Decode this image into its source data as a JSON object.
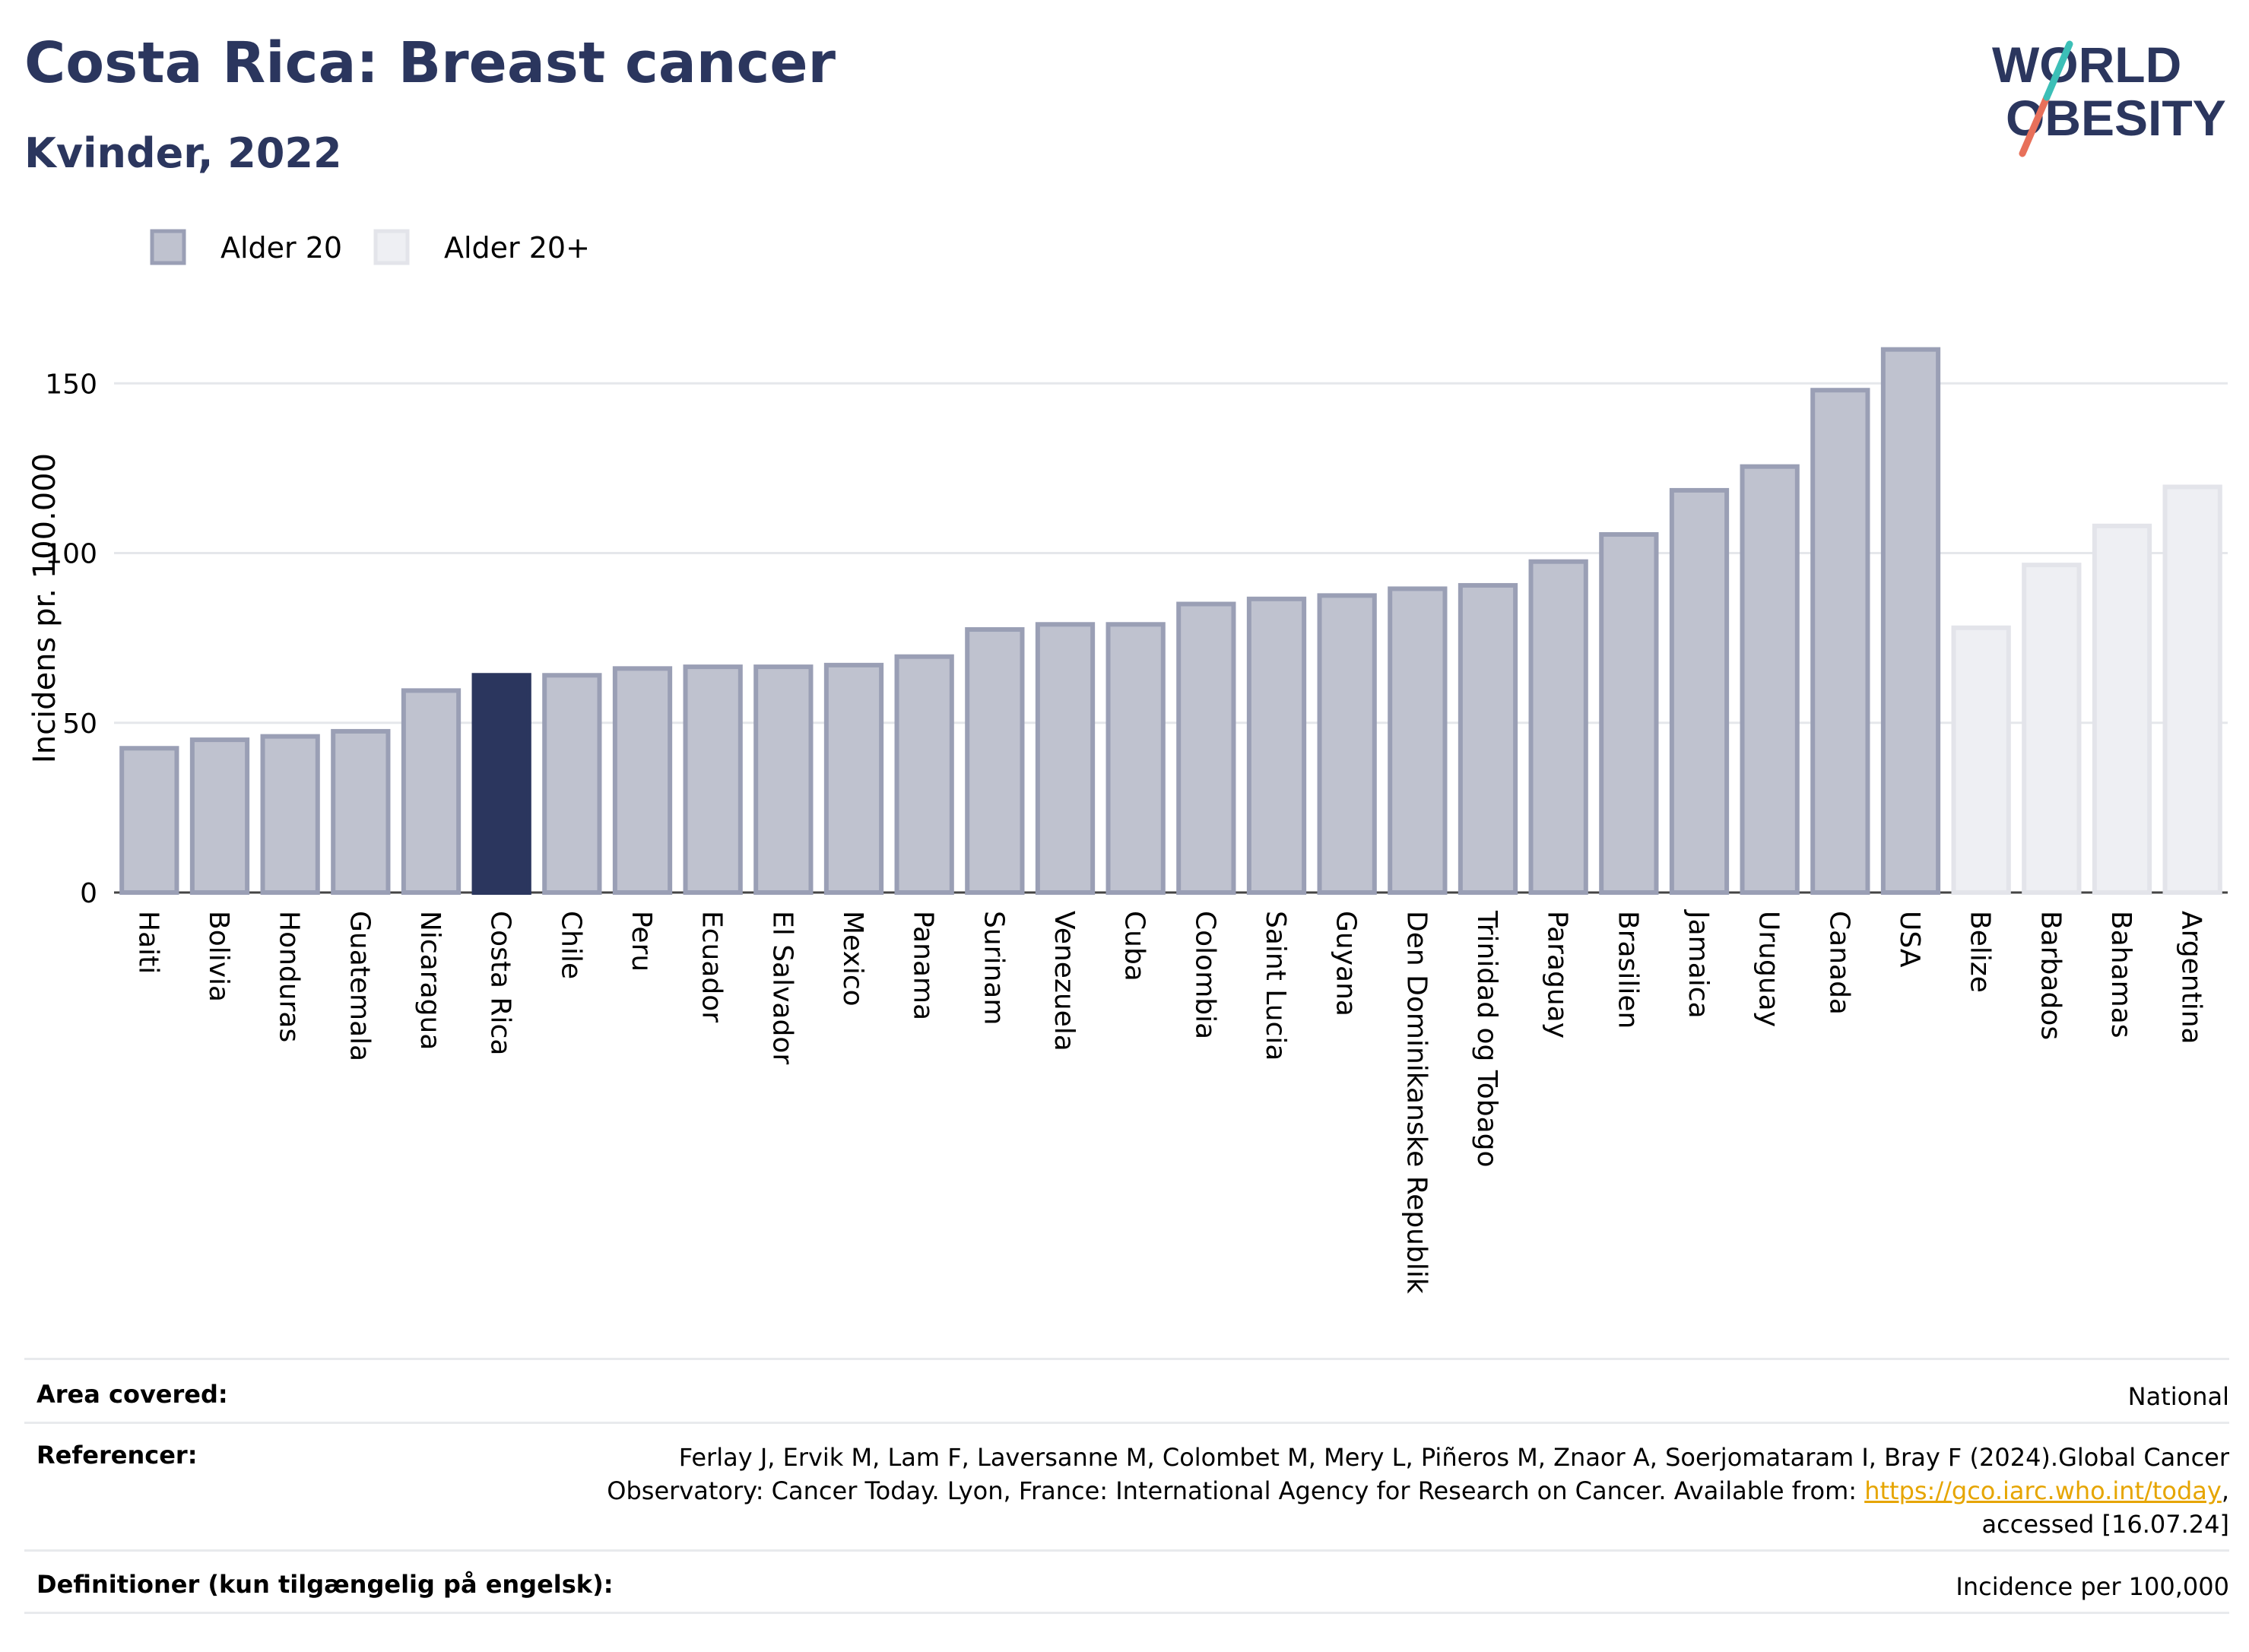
{
  "header": {
    "title": "Costa Rica: Breast cancer",
    "subtitle": "Kvinder, 2022",
    "logo_line1": "WORLD",
    "logo_line2": "OBESITY"
  },
  "colors": {
    "title": "#2b365e",
    "bar_main": "#bfc2cf",
    "bar_main_edge": "#9a9fb5",
    "bar_highlight": "#2b365e",
    "bar_secondary": "#eeeff3",
    "bar_secondary_edge": "#e3e4ea",
    "link": "#e6a500"
  },
  "chart_data": {
    "type": "bar",
    "ylabel": "Incidens pr. 100.000",
    "ylim": [
      0,
      170
    ],
    "yticks": [
      0,
      50,
      100,
      150
    ],
    "grid": true,
    "legend_placement": "top-left",
    "series": [
      {
        "name": "Alder 20",
        "color": "#bfc2cf"
      },
      {
        "name": "Alder 20+",
        "color": "#eeeff3"
      }
    ],
    "highlight": "Costa Rica",
    "categories": [
      "Haiti",
      "Bolivia",
      "Honduras",
      "Guatemala",
      "Nicaragua",
      "Costa Rica",
      "Chile",
      "Peru",
      "Ecuador",
      "El Salvador",
      "Mexico",
      "Panama",
      "Surinam",
      "Venezuela",
      "Cuba",
      "Colombia",
      "Saint Lucia",
      "Guyana",
      "Den Dominikanske Republik",
      "Trinidad og Tobago",
      "Paraguay",
      "Brasilien",
      "Jamaica",
      "Uruguay",
      "Canada",
      "USA",
      "Belize",
      "Barbados",
      "Bahamas",
      "Argentina"
    ],
    "values": [
      42.5,
      45,
      46,
      47.5,
      59.5,
      64,
      64,
      66,
      66.5,
      66.5,
      67,
      69.5,
      77.5,
      79,
      79,
      85,
      86.5,
      87.5,
      89.5,
      90.5,
      97.5,
      105.5,
      118.5,
      125.5,
      148,
      160,
      78,
      96.5,
      108,
      119.5
    ],
    "series_index": [
      0,
      0,
      0,
      0,
      0,
      0,
      0,
      0,
      0,
      0,
      0,
      0,
      0,
      0,
      0,
      0,
      0,
      0,
      0,
      0,
      0,
      0,
      0,
      0,
      0,
      0,
      1,
      1,
      1,
      1
    ]
  },
  "meta": {
    "area_label": "Area covered:",
    "area_value": "National",
    "ref_label": "Referencer:",
    "ref_line1": "Ferlay J, Ervik M, Lam F, Laversanne M, Colombet M, Mery L, Piñeros M, Znaor A, Soerjomataram I, Bray F (2024).Global Cancer",
    "ref_line2_pre": "Observatory: Cancer Today. Lyon, France: International Agency for Research on Cancer. Available from: ",
    "ref_link": "https://gco.iarc.who.int/today",
    "ref_line2_post": ",",
    "ref_line3": "accessed [16.07.24]",
    "def_label": "Definitioner (kun tilgængelig på engelsk):",
    "def_value": "Incidence per 100,000"
  }
}
